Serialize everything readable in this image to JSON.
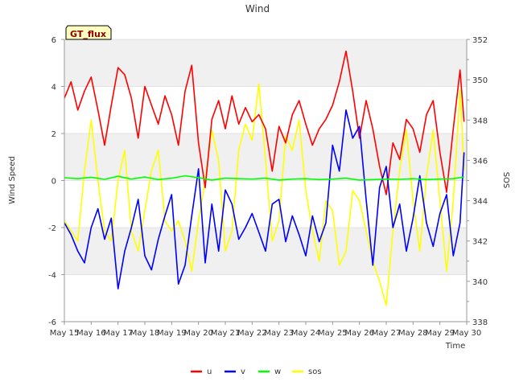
{
  "chart_data": {
    "type": "line",
    "title": "Wind",
    "site_label": "GT_flux",
    "xlabel": "Time",
    "ylabel_left": "Wind Speed",
    "ylabel_right": "SOS",
    "x_ticks": [
      "May 15",
      "May 16",
      "May 17",
      "May 18",
      "May 19",
      "May 20",
      "May 21",
      "May 22",
      "May 23",
      "May 24",
      "May 25",
      "May 26",
      "May 27",
      "May 28",
      "May 29",
      "May 30"
    ],
    "xlim": [
      0,
      15
    ],
    "ylim_left": [
      -6,
      6
    ],
    "ylim_right": [
      338,
      352
    ],
    "yticks_left": [
      "-6",
      "-4",
      "-2",
      "0",
      "2",
      "4",
      "6"
    ],
    "yticks_right": [
      "338",
      "340",
      "342",
      "344",
      "346",
      "348",
      "350",
      "352"
    ],
    "colors": {
      "u": "#ff0000",
      "v": "#0000ff",
      "w": "#00ff00",
      "sos": "#ffff00",
      "band": "#f0f0f0",
      "grid": "#dddddd"
    },
    "series": [
      {
        "name": "u",
        "axis": "left",
        "x": [
          0.0,
          0.25,
          0.5,
          0.75,
          1.0,
          1.25,
          1.5,
          1.75,
          2.0,
          2.25,
          2.5,
          2.75,
          3.0,
          3.25,
          3.5,
          3.75,
          4.0,
          4.25,
          4.5,
          4.75,
          5.0,
          5.25,
          5.5,
          5.75,
          6.0,
          6.25,
          6.5,
          6.75,
          7.0,
          7.25,
          7.5,
          7.75,
          8.0,
          8.25,
          8.5,
          8.75,
          9.0,
          9.25,
          9.5,
          9.75,
          10.0,
          10.25,
          10.5,
          10.75,
          11.0,
          11.25,
          11.5,
          11.75,
          12.0,
          12.25,
          12.5,
          12.75,
          13.0,
          13.25,
          13.5,
          13.75,
          14.0,
          14.25,
          14.5,
          14.75,
          14.9
        ],
        "values": [
          3.5,
          4.2,
          3.0,
          3.8,
          4.4,
          3.0,
          1.5,
          3.2,
          4.8,
          4.5,
          3.5,
          1.8,
          4.0,
          3.2,
          2.4,
          3.6,
          2.8,
          1.5,
          3.8,
          4.9,
          1.6,
          -0.3,
          2.6,
          3.4,
          2.2,
          3.6,
          2.4,
          3.1,
          2.5,
          2.8,
          2.2,
          0.4,
          2.3,
          1.6,
          2.8,
          3.4,
          2.4,
          1.5,
          2.2,
          2.6,
          3.2,
          4.2,
          5.5,
          3.8,
          1.8,
          3.4,
          2.2,
          0.6,
          -0.6,
          1.6,
          0.9,
          2.6,
          2.2,
          1.2,
          2.8,
          3.4,
          1.2,
          -0.5,
          2.2,
          4.7,
          2.5
        ]
      },
      {
        "name": "v",
        "axis": "left",
        "x": [
          0.0,
          0.25,
          0.5,
          0.75,
          1.0,
          1.25,
          1.5,
          1.75,
          2.0,
          2.25,
          2.5,
          2.75,
          3.0,
          3.25,
          3.5,
          3.75,
          4.0,
          4.25,
          4.5,
          4.75,
          5.0,
          5.25,
          5.5,
          5.75,
          6.0,
          6.25,
          6.5,
          6.75,
          7.0,
          7.25,
          7.5,
          7.75,
          8.0,
          8.25,
          8.5,
          8.75,
          9.0,
          9.25,
          9.5,
          9.75,
          10.0,
          10.25,
          10.5,
          10.75,
          11.0,
          11.25,
          11.5,
          11.75,
          12.0,
          12.25,
          12.5,
          12.75,
          13.0,
          13.25,
          13.5,
          13.75,
          14.0,
          14.25,
          14.5,
          14.75,
          14.9
        ],
        "values": [
          -1.8,
          -2.3,
          -3.0,
          -3.5,
          -2.0,
          -1.2,
          -2.5,
          -1.6,
          -4.6,
          -3.0,
          -2.0,
          -0.8,
          -3.2,
          -3.8,
          -2.5,
          -1.5,
          -0.6,
          -4.4,
          -3.6,
          -1.5,
          0.5,
          -3.5,
          -1.0,
          -3.0,
          -0.4,
          -1.0,
          -2.5,
          -2.0,
          -1.4,
          -2.2,
          -3.0,
          -1.0,
          -0.8,
          -2.6,
          -1.5,
          -2.3,
          -3.2,
          -1.5,
          -2.6,
          -1.8,
          1.5,
          0.4,
          3.0,
          1.8,
          2.3,
          -0.8,
          -3.6,
          -0.3,
          0.6,
          -2.0,
          -1.0,
          -3.0,
          -1.6,
          0.2,
          -1.8,
          -2.8,
          -1.4,
          -0.6,
          -3.2,
          -1.8,
          1.2
        ]
      },
      {
        "name": "w",
        "axis": "left",
        "x": [
          0.0,
          0.5,
          1.0,
          1.5,
          2.0,
          2.5,
          3.0,
          3.5,
          4.0,
          4.5,
          5.0,
          5.5,
          6.0,
          6.5,
          7.0,
          7.5,
          8.0,
          8.5,
          9.0,
          9.5,
          10.0,
          10.5,
          11.0,
          11.5,
          12.0,
          12.5,
          13.0,
          13.5,
          14.0,
          14.5,
          14.9
        ],
        "values": [
          0.12,
          0.08,
          0.14,
          0.05,
          0.18,
          0.06,
          0.15,
          0.04,
          0.1,
          0.2,
          0.12,
          0.02,
          0.1,
          0.08,
          0.06,
          0.1,
          0.02,
          0.06,
          0.08,
          0.04,
          0.06,
          0.1,
          0.02,
          0.04,
          0.06,
          0.05,
          0.08,
          0.04,
          0.06,
          0.08,
          0.15
        ]
      },
      {
        "name": "sos",
        "axis": "right",
        "x": [
          0.0,
          0.25,
          0.5,
          0.75,
          1.0,
          1.25,
          1.5,
          1.75,
          2.0,
          2.25,
          2.5,
          2.75,
          3.0,
          3.25,
          3.5,
          3.75,
          4.0,
          4.25,
          4.5,
          4.75,
          5.0,
          5.25,
          5.5,
          5.75,
          6.0,
          6.25,
          6.5,
          6.75,
          7.0,
          7.25,
          7.5,
          7.75,
          8.0,
          8.25,
          8.5,
          8.75,
          9.0,
          9.25,
          9.5,
          9.75,
          10.0,
          10.25,
          10.5,
          10.75,
          11.0,
          11.25,
          11.5,
          11.75,
          12.0,
          12.25,
          12.5,
          12.75,
          13.0,
          13.25,
          13.5,
          13.75,
          14.0,
          14.25,
          14.5,
          14.75,
          14.9
        ],
        "values": [
          343.0,
          342.5,
          342.0,
          345.5,
          348.0,
          345.0,
          342.5,
          342.0,
          345.0,
          346.5,
          342.5,
          341.5,
          343.5,
          345.5,
          346.5,
          343.0,
          342.5,
          343.0,
          342.0,
          340.5,
          343.0,
          345.0,
          347.5,
          346.0,
          341.5,
          342.5,
          346.5,
          347.8,
          347.0,
          349.8,
          346.0,
          342.0,
          343.0,
          347.2,
          346.5,
          348.0,
          344.5,
          342.5,
          341.0,
          344.0,
          343.5,
          340.8,
          341.5,
          344.5,
          344.0,
          342.5,
          341.0,
          340.0,
          338.8,
          342.5,
          345.5,
          347.5,
          344.0,
          341.5,
          345.2,
          347.5,
          344.0,
          340.5,
          344.0,
          349.5,
          345.5
        ]
      }
    ]
  }
}
